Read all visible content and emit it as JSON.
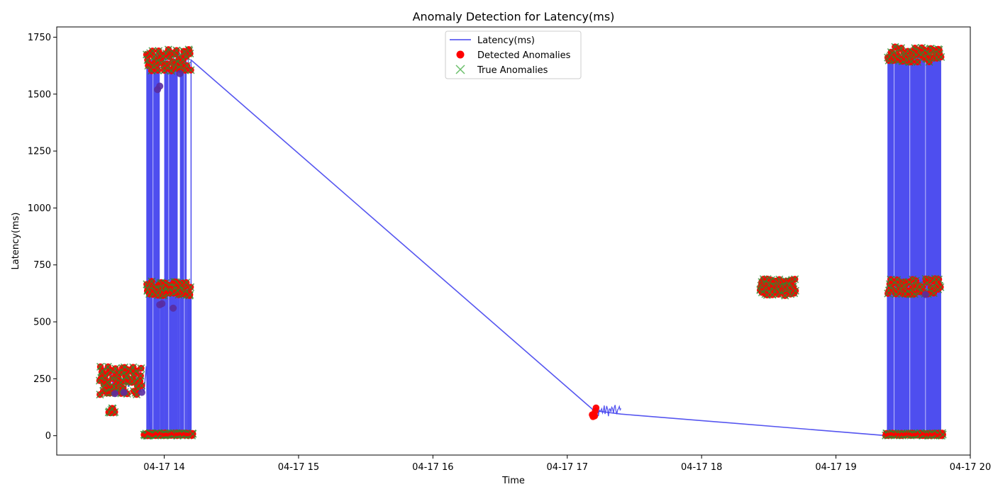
{
  "chart_data": {
    "type": "line",
    "title": "Anomaly Detection for Latency(ms)",
    "xlabel": "Time",
    "ylabel": "Latency(ms)",
    "x_ticks": [
      "04-17 14",
      "04-17 15",
      "04-17 16",
      "04-17 17",
      "04-17 18",
      "04-17 19",
      "04-17 20"
    ],
    "y_ticks": [
      "0",
      "250",
      "500",
      "750",
      "1000",
      "1250",
      "1500",
      "1750"
    ],
    "xlim": [
      "04-17 13:12",
      "04-17 20:00"
    ],
    "ylim": [
      -85,
      1795
    ],
    "legend_position": "top-center",
    "grid": false,
    "colors": {
      "line": "#4444ee",
      "detected": "#ff0000",
      "true": "#2e8b2e",
      "overlap": "#5a2ca0"
    },
    "series": [
      {
        "name": "Latency(ms)",
        "kind": "line"
      },
      {
        "name": "Detected Anomalies",
        "kind": "scatter-dot"
      },
      {
        "name": "True Anomalies",
        "kind": "scatter-x"
      }
    ],
    "line_points": [
      [
        "04-17 13:32",
        270
      ],
      [
        "04-17 13:36",
        190
      ],
      [
        "04-17 13:40",
        255
      ],
      [
        "04-17 13:44",
        230
      ],
      [
        "04-17 13:48",
        250
      ],
      [
        "04-17 13:51",
        195
      ],
      [
        "04-17 13:52",
        305
      ],
      [
        "04-17 13:54",
        0
      ],
      [
        "04-17 14:12",
        0
      ],
      [
        "04-17 14:12",
        1650
      ],
      [
        "04-17 17:12",
        110
      ],
      [
        "04-17 17:24",
        95
      ],
      [
        "04-17 19:23",
        0
      ],
      [
        "04-17 19:23",
        660
      ]
    ],
    "dense_blocks": [
      {
        "start": "04-17 13:52",
        "end": "04-17 14:12",
        "min": 0,
        "max": 1650,
        "spans": [
          [
            "04-17 13:52",
            "04-17 13:58",
            1650
          ],
          [
            "04-17 13:58",
            "04-17 14:00",
            630
          ],
          [
            "04-17 14:00",
            "04-17 14:06",
            1620
          ],
          [
            "04-17 14:06",
            "04-17 14:07",
            650
          ],
          [
            "04-17 14:07",
            "04-17 14:10",
            1660
          ],
          [
            "04-17 14:10",
            "04-17 14:12",
            640
          ]
        ]
      },
      {
        "start": "04-17 19:23",
        "end": "04-17 19:47",
        "min": 0,
        "max": 1680,
        "spans": [
          [
            "04-17 19:23",
            "04-17 19:47",
            1670
          ]
        ]
      }
    ],
    "noisy_segments": [
      {
        "start": "04-17 13:32",
        "end": "04-17 13:50",
        "min": 200,
        "max": 300
      },
      {
        "start": "04-17 13:36",
        "end": "04-17 13:38",
        "min": 105,
        "max": 125
      },
      {
        "start": "04-17 17:12",
        "end": "04-17 17:24",
        "min": 85,
        "max": 135
      },
      {
        "start": "04-17 18:28",
        "end": "04-17 18:42",
        "min": 620,
        "max": 690
      },
      {
        "start": "04-17 19:23",
        "end": "04-17 19:47",
        "min": 620,
        "max": 690
      },
      {
        "start": "04-17 13:52",
        "end": "04-17 14:12",
        "min": 615,
        "max": 680
      },
      {
        "start": "04-17 13:52",
        "end": "04-17 14:12",
        "min": 1600,
        "max": 1700
      }
    ],
    "anomaly_clusters": [
      {
        "start": "04-17 13:31",
        "end": "04-17 13:50",
        "min": 180,
        "max": 305,
        "n": 80,
        "truth": true
      },
      {
        "start": "04-17 13:35",
        "end": "04-17 13:38",
        "min": 100,
        "max": 125,
        "n": 8,
        "truth": true
      },
      {
        "start": "04-17 13:51",
        "end": "04-17 14:13",
        "min": 0,
        "max": 12,
        "n": 80,
        "truth": true
      },
      {
        "start": "04-17 13:52",
        "end": "04-17 14:12",
        "min": 615,
        "max": 680,
        "n": 70,
        "truth": true
      },
      {
        "start": "04-17 13:52",
        "end": "04-17 14:12",
        "min": 1600,
        "max": 1700,
        "n": 60,
        "truth": true
      },
      {
        "start": "04-17 17:11",
        "end": "04-17 17:13",
        "min": 80,
        "max": 125,
        "n": 6,
        "truth": false
      },
      {
        "start": "04-17 18:26",
        "end": "04-17 18:42",
        "min": 615,
        "max": 690,
        "n": 70,
        "truth": true
      },
      {
        "start": "04-17 19:22",
        "end": "04-17 19:48",
        "min": 0,
        "max": 12,
        "n": 70,
        "truth": true
      },
      {
        "start": "04-17 19:23",
        "end": "04-17 19:47",
        "min": 620,
        "max": 690,
        "n": 60,
        "truth": true
      },
      {
        "start": "04-17 19:23",
        "end": "04-17 19:47",
        "min": 1640,
        "max": 1710,
        "n": 60,
        "truth": true
      }
    ],
    "highlight_points": [
      [
        "04-17 13:57",
        1520
      ],
      [
        "04-17 13:58",
        1535
      ],
      [
        "04-17 14:07",
        1590
      ],
      [
        "04-17 13:59",
        580
      ],
      [
        "04-17 13:58",
        575
      ],
      [
        "04-17 14:04",
        560
      ],
      [
        "04-17 13:38",
        185
      ],
      [
        "04-17 13:42",
        190
      ],
      [
        "04-17 13:50",
        190
      ],
      [
        "04-17 19:40",
        620
      ]
    ]
  }
}
